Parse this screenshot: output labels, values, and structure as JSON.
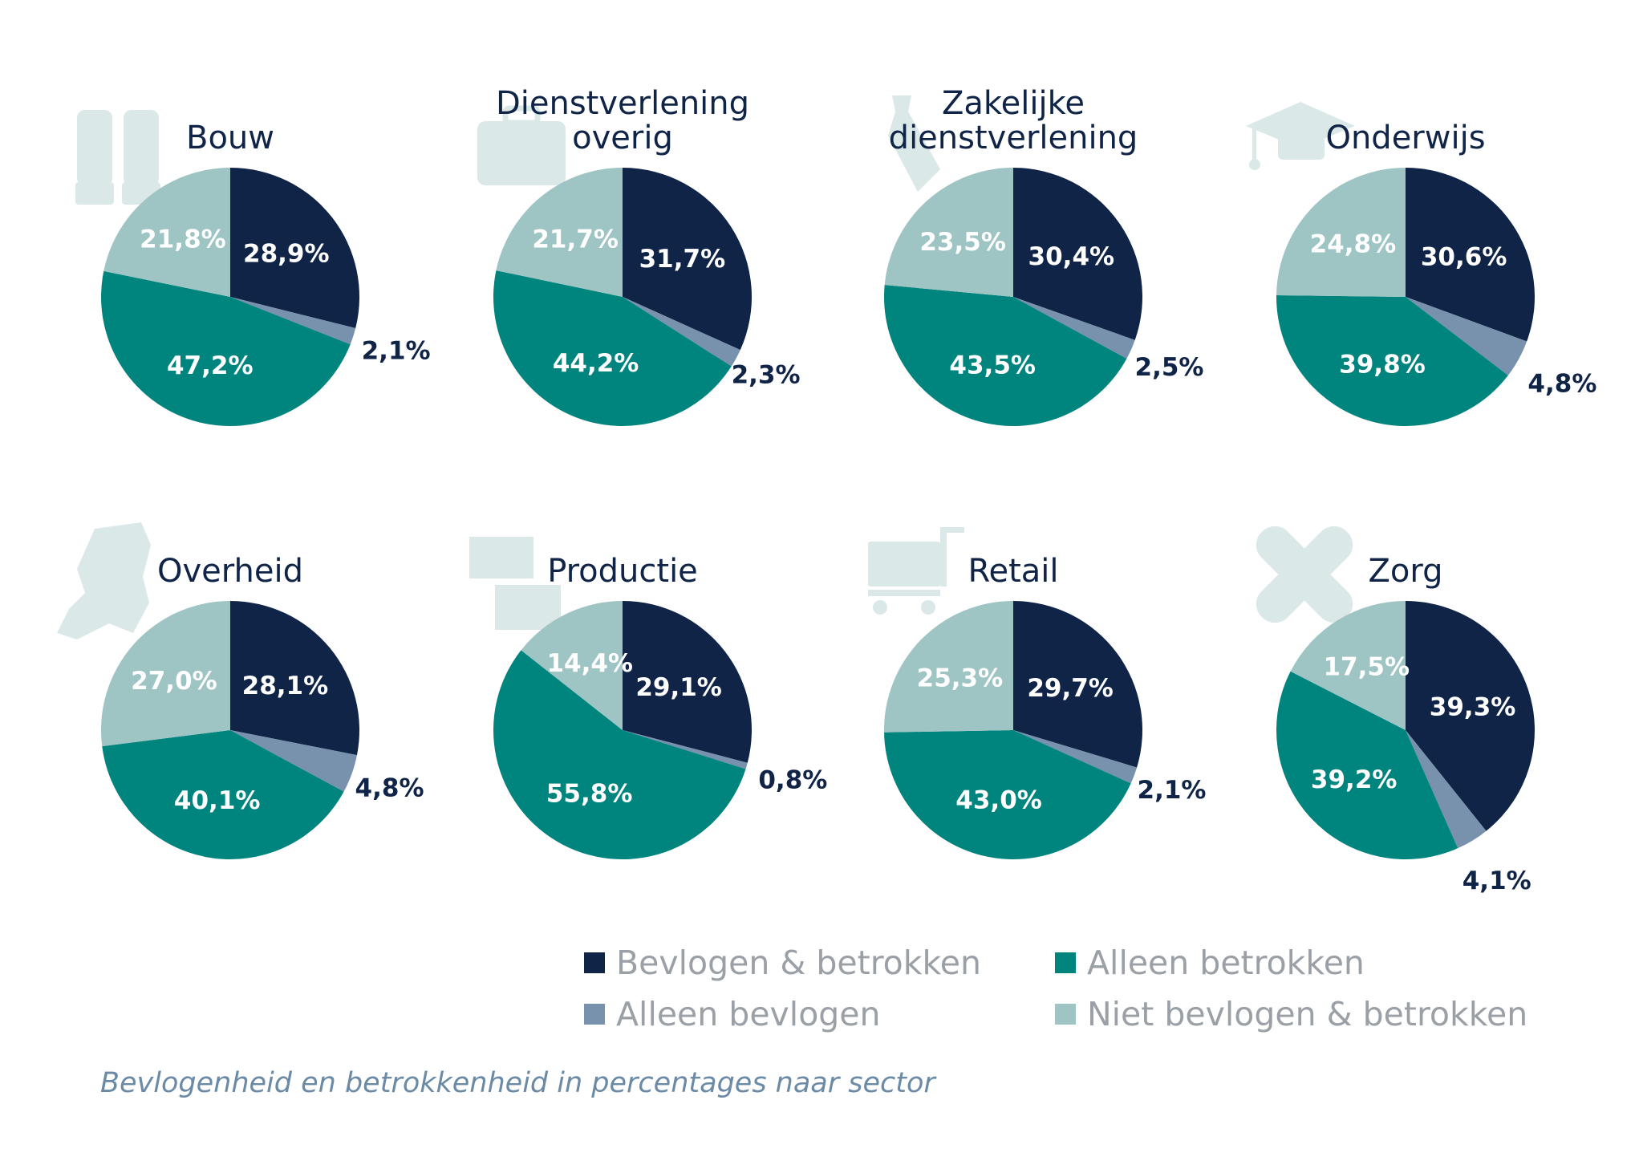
{
  "chart_data": [
    {
      "type": "pie",
      "title": [
        "Bouw"
      ],
      "icon": "gloves-icon",
      "slices": [
        {
          "series": "Bevlogen & betrokken",
          "value": 28.9,
          "label": "28,9%"
        },
        {
          "series": "Alleen bevlogen",
          "value": 2.1,
          "label": "2,1%"
        },
        {
          "series": "Alleen betrokken",
          "value": 47.2,
          "label": "47,2%"
        },
        {
          "series": "Niet bevlogen & betrokken",
          "value": 21.8,
          "label": "21,8%"
        }
      ]
    },
    {
      "type": "pie",
      "title": [
        "Dienstverlening",
        "overig"
      ],
      "icon": "briefcase-icon",
      "slices": [
        {
          "series": "Bevlogen & betrokken",
          "value": 31.7,
          "label": "31,7%"
        },
        {
          "series": "Alleen bevlogen",
          "value": 2.3,
          "label": "2,3%"
        },
        {
          "series": "Alleen betrokken",
          "value": 44.2,
          "label": "44,2%"
        },
        {
          "series": "Niet bevlogen & betrokken",
          "value": 21.7,
          "label": "21,7%"
        }
      ]
    },
    {
      "type": "pie",
      "title": [
        "Zakelijke",
        "dienstverlening"
      ],
      "icon": "tie-icon",
      "slices": [
        {
          "series": "Bevlogen & betrokken",
          "value": 30.4,
          "label": "30,4%"
        },
        {
          "series": "Alleen bevlogen",
          "value": 2.5,
          "label": "2,5%"
        },
        {
          "series": "Alleen betrokken",
          "value": 43.5,
          "label": "43,5%"
        },
        {
          "series": "Niet bevlogen & betrokken",
          "value": 23.5,
          "label": "23,5%"
        }
      ]
    },
    {
      "type": "pie",
      "title": [
        "Onderwijs"
      ],
      "icon": "graduation-cap-icon",
      "slices": [
        {
          "series": "Bevlogen & betrokken",
          "value": 30.6,
          "label": "30,6%"
        },
        {
          "series": "Alleen bevlogen",
          "value": 4.8,
          "label": "4,8%"
        },
        {
          "series": "Alleen betrokken",
          "value": 39.8,
          "label": "39,8%"
        },
        {
          "series": "Niet bevlogen & betrokken",
          "value": 24.8,
          "label": "24,8%"
        }
      ]
    },
    {
      "type": "pie",
      "title": [
        "Overheid"
      ],
      "icon": "netherlands-map-icon",
      "slices": [
        {
          "series": "Bevlogen & betrokken",
          "value": 28.1,
          "label": "28,1%"
        },
        {
          "series": "Alleen bevlogen",
          "value": 4.8,
          "label": "4,8%"
        },
        {
          "series": "Alleen betrokken",
          "value": 40.1,
          "label": "40,1%"
        },
        {
          "series": "Niet bevlogen & betrokken",
          "value": 27.0,
          "label": "27,0%"
        }
      ]
    },
    {
      "type": "pie",
      "title": [
        "Productie"
      ],
      "icon": "boxes-icon",
      "slices": [
        {
          "series": "Bevlogen & betrokken",
          "value": 29.1,
          "label": "29,1%"
        },
        {
          "series": "Alleen bevlogen",
          "value": 0.8,
          "label": "0,8%"
        },
        {
          "series": "Alleen betrokken",
          "value": 55.8,
          "label": "55,8%"
        },
        {
          "series": "Niet bevlogen & betrokken",
          "value": 14.4,
          "label": "14,4%"
        }
      ]
    },
    {
      "type": "pie",
      "title": [
        "Retail"
      ],
      "icon": "shopping-cart-icon",
      "slices": [
        {
          "series": "Bevlogen & betrokken",
          "value": 29.7,
          "label": "29,7%"
        },
        {
          "series": "Alleen bevlogen",
          "value": 2.1,
          "label": "2,1%"
        },
        {
          "series": "Alleen betrokken",
          "value": 43.0,
          "label": "43,0%"
        },
        {
          "series": "Niet bevlogen & betrokken",
          "value": 25.3,
          "label": "25,3%"
        }
      ]
    },
    {
      "type": "pie",
      "title": [
        "Zorg"
      ],
      "icon": "bandage-icon",
      "slices": [
        {
          "series": "Bevlogen & betrokken",
          "value": 39.3,
          "label": "39,3%"
        },
        {
          "series": "Alleen bevlogen",
          "value": 4.1,
          "label": "4,1%"
        },
        {
          "series": "Alleen betrokken",
          "value": 39.2,
          "label": "39,2%"
        },
        {
          "series": "Niet bevlogen & betrokken",
          "value": 17.5,
          "label": "17,5%"
        }
      ]
    }
  ],
  "legend": [
    {
      "label": "Bevlogen & betrokken",
      "color": "#0f2447"
    },
    {
      "label": "Alleen betrokken",
      "color": "#00847e"
    },
    {
      "label": "Alleen bevlogen",
      "color": "#7891ad"
    },
    {
      "label": "Niet bevlogen & betrokken",
      "color": "#9ec4c4"
    }
  ],
  "colors": {
    "Bevlogen & betrokken": "#0f2447",
    "Alleen bevlogen": "#7891ad",
    "Alleen betrokken": "#00847e",
    "Niet bevlogen & betrokken": "#9ec4c4",
    "icon": "#dbe8e8"
  },
  "caption": "Bevlogenheid en betrokkenheid in percentages naar sector"
}
